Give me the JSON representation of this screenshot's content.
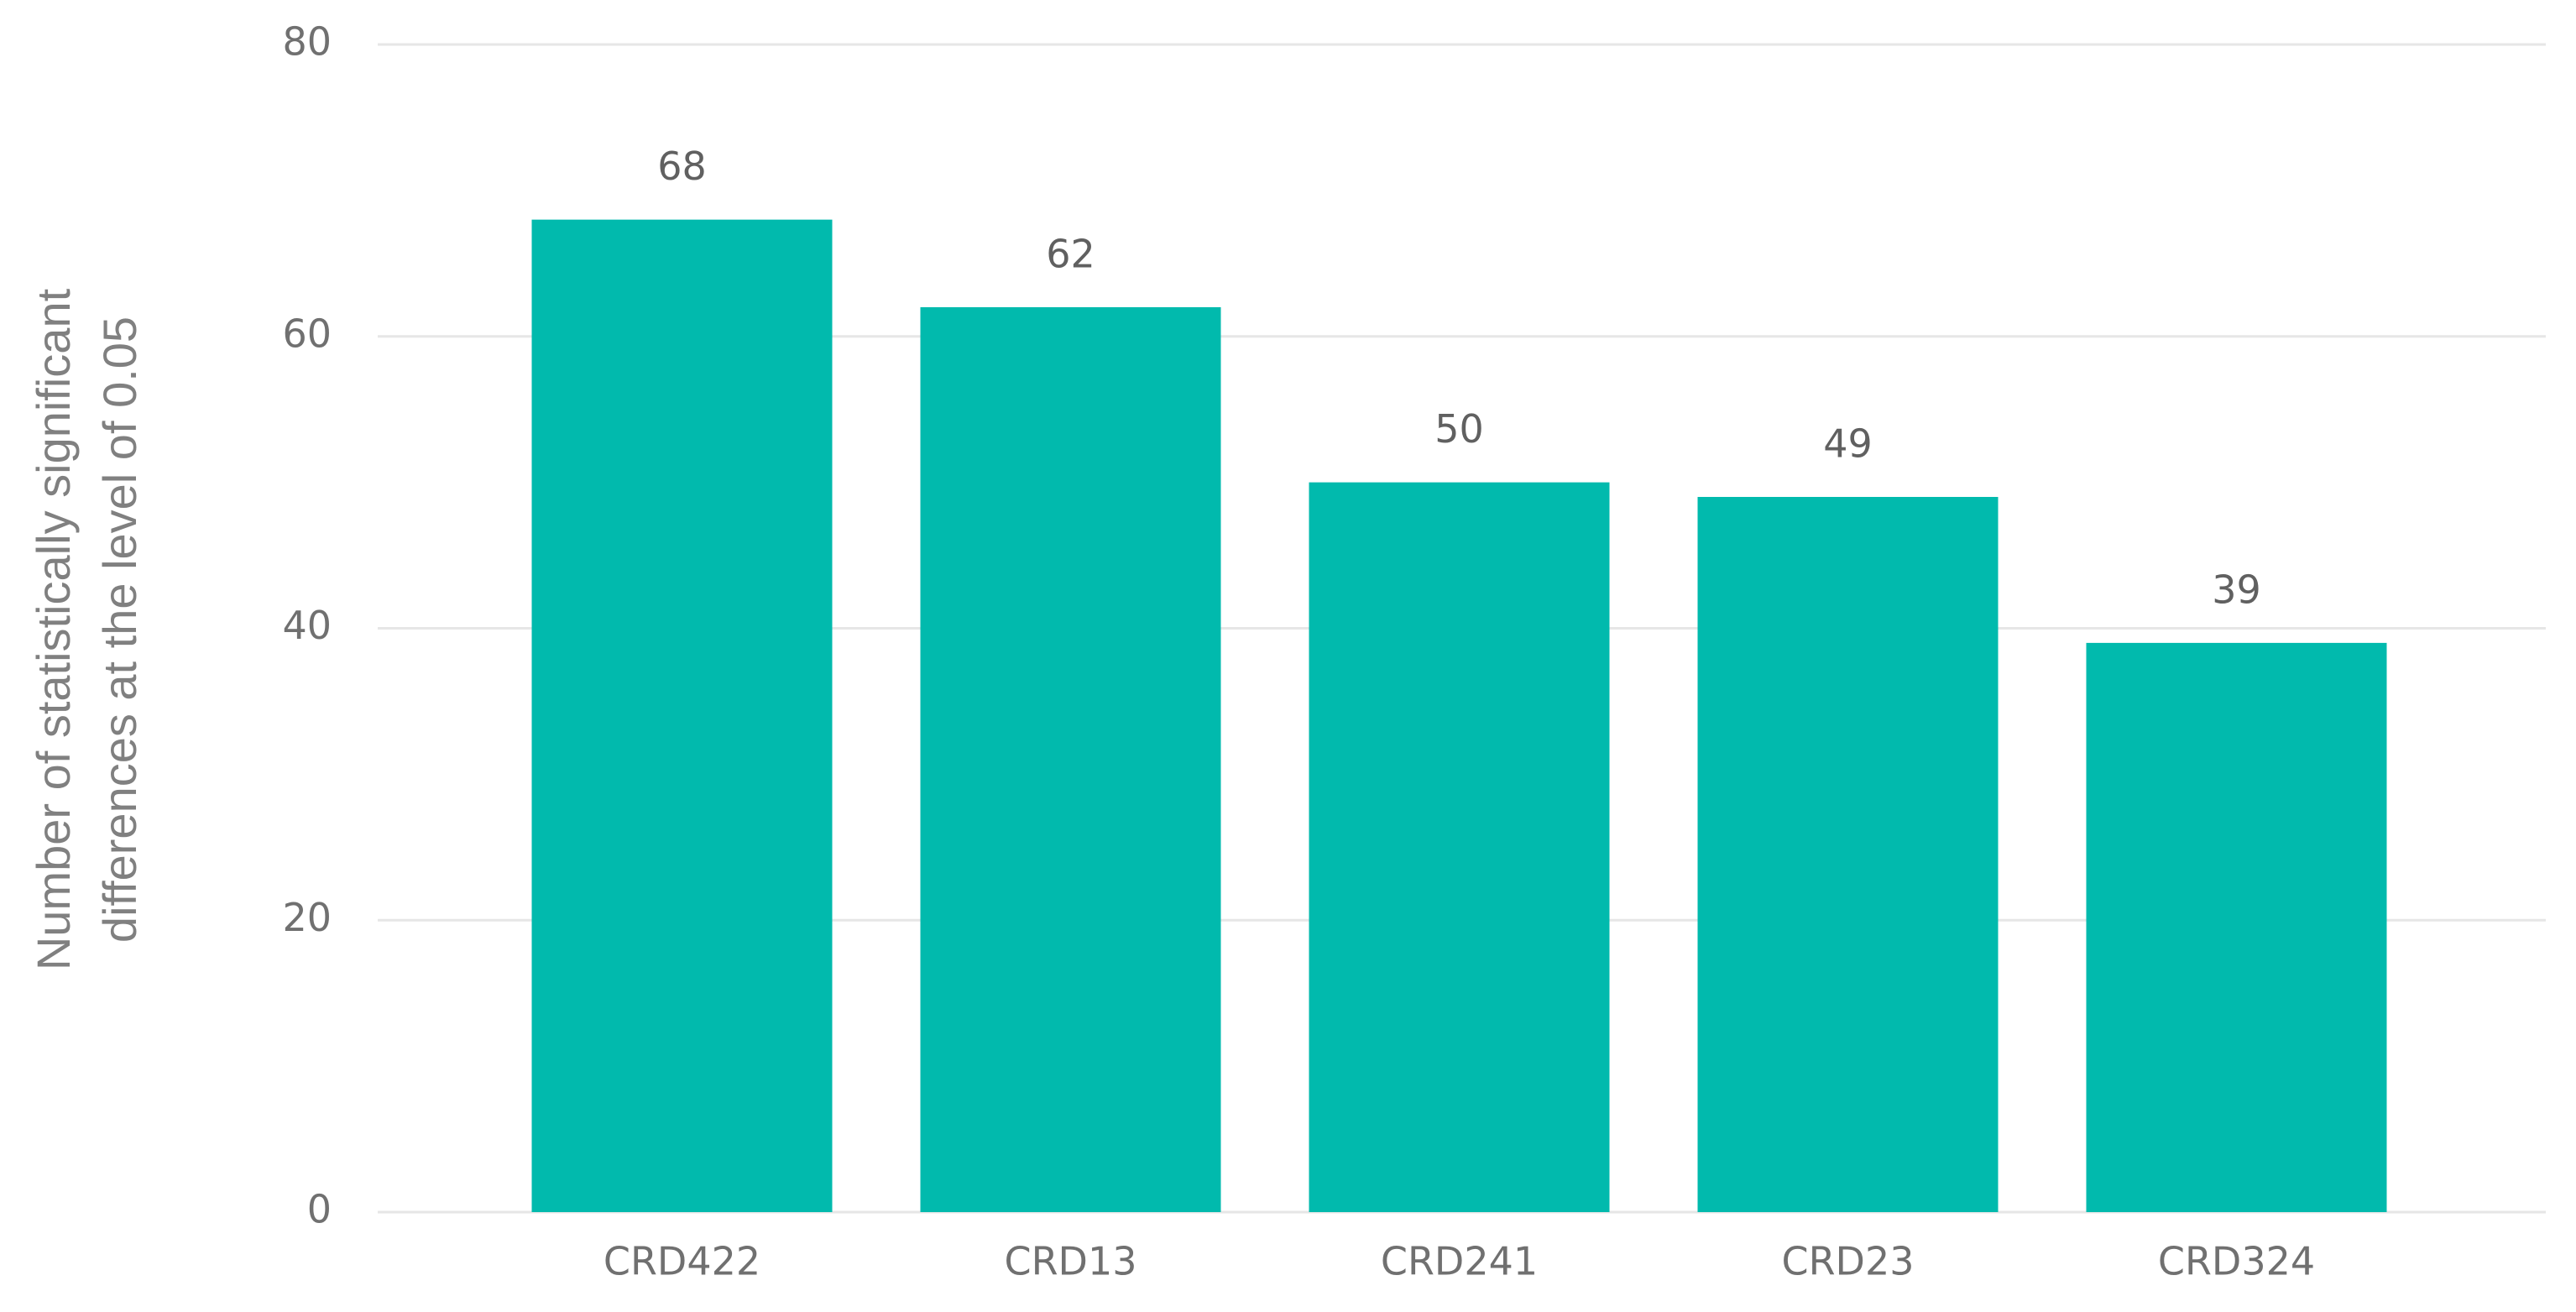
{
  "chart_data": {
    "type": "bar",
    "ylabel": [
      "Number of statistically significant",
      "differences at the level of 0.05"
    ],
    "categories": [
      "CRD422",
      "CRD13",
      "CRD241",
      "CRD23",
      "CRD324"
    ],
    "values": [
      68,
      62,
      50,
      49,
      39
    ],
    "color": "#01baad",
    "ylim": [
      0,
      80
    ],
    "yticks": [
      0,
      20,
      40,
      60,
      80
    ],
    "grid": true
  }
}
